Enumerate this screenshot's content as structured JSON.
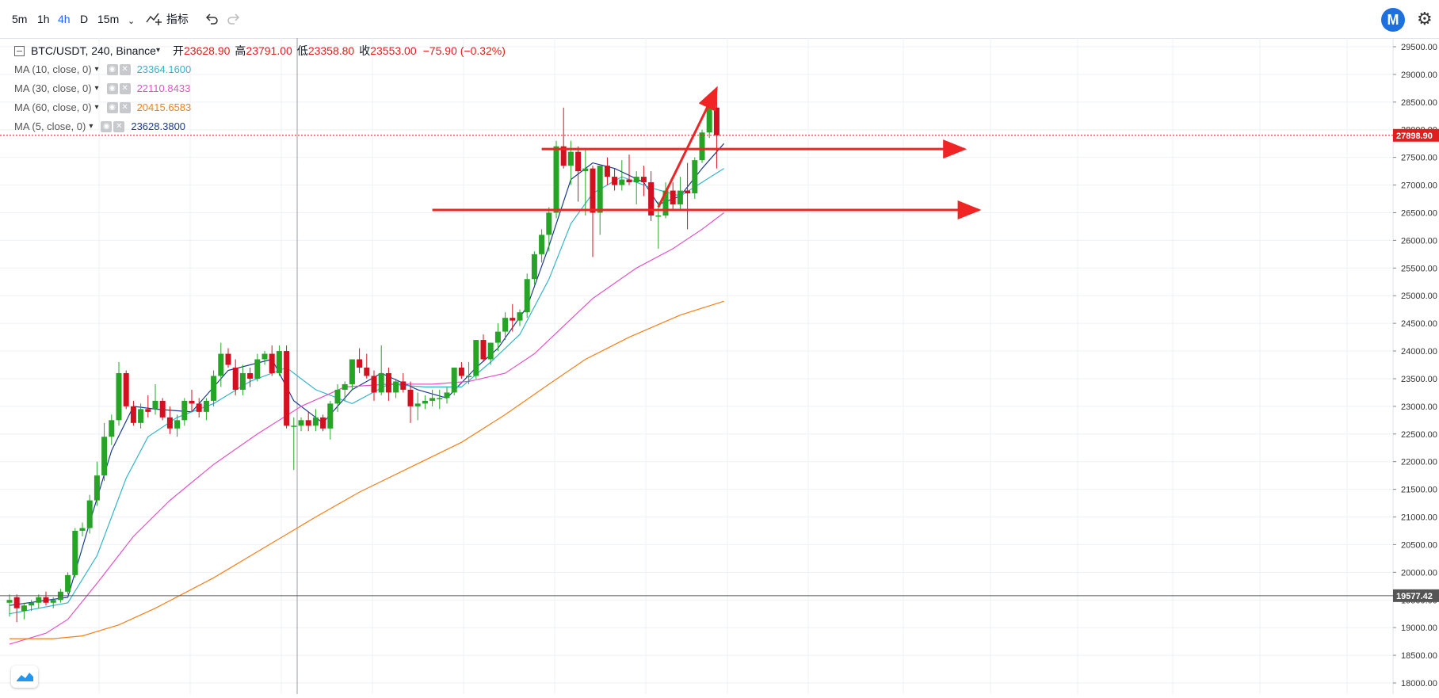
{
  "toolbar": {
    "intervals": [
      "5m",
      "1h",
      "4h",
      "D",
      "15m"
    ],
    "active_interval": "4h",
    "dropdown_icon": "chevron-down-icon",
    "indicators_label": "指标",
    "undo_icon": "undo-icon",
    "redo_icon": "redo-icon",
    "logo_icon": "m-logo-icon",
    "logo_letter": "M",
    "settings_icon": "gear-icon"
  },
  "legend": {
    "symbol": "BTC/USDT, 240, Binance",
    "open_label": "开",
    "open": "23628.90",
    "high_label": "高",
    "high": "23791.00",
    "low_label": "低",
    "low": "23358.80",
    "close_label": "收",
    "close": "23553.00",
    "change": "−75.90 (−0.32%)",
    "ma": [
      {
        "label": "MA (10, close, 0)",
        "value": "23364.1600",
        "color": "#31b5c9"
      },
      {
        "label": "MA (30, close, 0)",
        "value": "22110.8433",
        "color": "#e651c8"
      },
      {
        "label": "MA (60, close, 0)",
        "value": "20415.6583",
        "color": "#f57f17"
      },
      {
        "label": "MA (5, close, 0)",
        "value": "23628.3800",
        "color": "#1a3a8f"
      }
    ]
  },
  "chart_data": {
    "type": "candlestick",
    "y_range": [
      17900,
      30000
    ],
    "y_ticks": [
      "29500.00",
      "29000.00",
      "28500.00",
      "28000.00",
      "27500.00",
      "27000.00",
      "26500.00",
      "26000.00",
      "25500.00",
      "25000.00",
      "24500.00",
      "24000.00",
      "23500.00",
      "23000.00",
      "22500.00",
      "22000.00",
      "21500.00",
      "21000.00",
      "20500.00",
      "20000.00",
      "19500.00",
      "19000.00",
      "18500.00",
      "18000.00"
    ],
    "price_tags": [
      {
        "value": 27898.9,
        "label": "27898.90",
        "color": "#e01e1e"
      },
      {
        "value": 19577.42,
        "label": "19577.42",
        "color": "#555555"
      }
    ],
    "candles": [
      [
        19450,
        19600,
        19200,
        19500
      ],
      [
        19550,
        19600,
        19100,
        19350
      ],
      [
        19300,
        19450,
        19150,
        19400
      ],
      [
        19400,
        19500,
        19300,
        19450
      ],
      [
        19450,
        19600,
        19350,
        19550
      ],
      [
        19550,
        19650,
        19400,
        19450
      ],
      [
        19450,
        19550,
        19350,
        19500
      ],
      [
        19500,
        19700,
        19450,
        19650
      ],
      [
        19650,
        20000,
        19600,
        19950
      ],
      [
        19950,
        20800,
        19900,
        20750
      ],
      [
        20750,
        20900,
        20650,
        20800
      ],
      [
        20800,
        21400,
        20700,
        21300
      ],
      [
        21300,
        22000,
        21200,
        21750
      ],
      [
        21750,
        22700,
        21650,
        22450
      ],
      [
        22450,
        22850,
        22300,
        22750
      ],
      [
        22750,
        23800,
        22650,
        23600
      ],
      [
        23600,
        23650,
        22950,
        23000
      ],
      [
        23000,
        23100,
        22650,
        22700
      ],
      [
        22700,
        23050,
        22600,
        22950
      ],
      [
        22950,
        23200,
        22800,
        22900
      ],
      [
        22950,
        23400,
        22850,
        23100
      ],
      [
        23100,
        23150,
        22750,
        22800
      ],
      [
        22800,
        23000,
        22500,
        22600
      ],
      [
        22600,
        22850,
        22450,
        22750
      ],
      [
        22750,
        23150,
        22650,
        23100
      ],
      [
        23100,
        23300,
        22900,
        23050
      ],
      [
        23050,
        23150,
        22800,
        22900
      ],
      [
        22900,
        23150,
        22750,
        23100
      ],
      [
        23100,
        23650,
        23000,
        23550
      ],
      [
        23550,
        24150,
        23350,
        23950
      ],
      [
        23950,
        24050,
        23700,
        23750
      ],
      [
        23700,
        23850,
        23200,
        23300
      ],
      [
        23300,
        23750,
        23200,
        23600
      ],
      [
        23600,
        23700,
        23350,
        23500
      ],
      [
        23500,
        23950,
        23450,
        23850
      ],
      [
        23850,
        24000,
        23750,
        23950
      ],
      [
        23950,
        24100,
        23550,
        23600
      ],
      [
        23600,
        24100,
        23550,
        24000
      ],
      [
        24000,
        24100,
        22600,
        22650
      ],
      [
        22650,
        22800,
        21850,
        22650
      ],
      [
        22650,
        22800,
        22550,
        22750
      ],
      [
        22750,
        22900,
        22550,
        22650
      ],
      [
        22650,
        22950,
        22550,
        22800
      ],
      [
        22800,
        22850,
        22550,
        22600
      ],
      [
        22600,
        23100,
        22400,
        23050
      ],
      [
        23050,
        23400,
        22900,
        23300
      ],
      [
        23300,
        23450,
        23100,
        23400
      ],
      [
        23400,
        23850,
        23300,
        23850
      ],
      [
        23850,
        24050,
        23600,
        23700
      ],
      [
        23700,
        23950,
        23500,
        23550
      ],
      [
        23550,
        23650,
        23100,
        23250
      ],
      [
        23250,
        24100,
        23200,
        23600
      ],
      [
        23600,
        23700,
        23100,
        23250
      ],
      [
        23250,
        23500,
        23150,
        23450
      ],
      [
        23450,
        23600,
        23250,
        23300
      ],
      [
        23300,
        23450,
        22700,
        23000
      ],
      [
        23000,
        23250,
        22750,
        23050
      ],
      [
        23050,
        23200,
        22950,
        23100
      ],
      [
        23100,
        23300,
        23000,
        23150
      ],
      [
        23150,
        23300,
        22950,
        23150
      ],
      [
        23150,
        23350,
        23050,
        23250
      ],
      [
        23250,
        23650,
        23200,
        23700
      ],
      [
        23700,
        23800,
        23500,
        23550
      ],
      [
        23550,
        23800,
        23400,
        23550
      ],
      [
        23550,
        24200,
        23500,
        24200
      ],
      [
        24200,
        24300,
        23800,
        23850
      ],
      [
        23850,
        24150,
        23750,
        24150
      ],
      [
        24150,
        24500,
        24000,
        24350
      ],
      [
        24350,
        24700,
        24200,
        24600
      ],
      [
        24600,
        24850,
        24350,
        24550
      ],
      [
        24550,
        24750,
        24450,
        24700
      ],
      [
        24700,
        25400,
        24600,
        25300
      ],
      [
        25300,
        25800,
        25200,
        25750
      ],
      [
        25750,
        26200,
        25600,
        26100
      ],
      [
        26100,
        26600,
        25800,
        26500
      ],
      [
        26500,
        27800,
        26400,
        27700
      ],
      [
        27700,
        28400,
        27300,
        27350
      ],
      [
        27350,
        27800,
        27000,
        27600
      ],
      [
        27600,
        27700,
        26700,
        27250
      ],
      [
        27250,
        27650,
        26450,
        27300
      ],
      [
        27300,
        27350,
        25700,
        26500
      ],
      [
        26500,
        27350,
        26100,
        27350
      ],
      [
        27350,
        27500,
        27000,
        27150
      ],
      [
        27150,
        27300,
        26900,
        27000
      ],
      [
        27000,
        27450,
        26900,
        27100
      ],
      [
        27100,
        27550,
        27000,
        27050
      ],
      [
        27050,
        27250,
        26650,
        27150
      ],
      [
        27150,
        27350,
        26800,
        27050
      ],
      [
        27050,
        27250,
        26350,
        26450
      ],
      [
        26450,
        26700,
        25850,
        26450
      ],
      [
        26450,
        27050,
        26400,
        26900
      ],
      [
        26900,
        27050,
        26550,
        26650
      ],
      [
        26650,
        27150,
        26550,
        26900
      ],
      [
        26900,
        27400,
        26200,
        26850
      ],
      [
        26850,
        27500,
        26750,
        27450
      ],
      [
        27450,
        28000,
        27400,
        27950
      ],
      [
        27950,
        28550,
        27850,
        28400
      ],
      [
        28400,
        28650,
        27300,
        27900
      ]
    ],
    "ma_series": [
      {
        "name": "MA (5, close, 0)",
        "color": "#1a3a8f",
        "points": [
          [
            0,
            19400
          ],
          [
            8,
            19550
          ],
          [
            11,
            20900
          ],
          [
            14,
            22200
          ],
          [
            17,
            23000
          ],
          [
            20,
            22950
          ],
          [
            25,
            22900
          ],
          [
            30,
            23650
          ],
          [
            36,
            23850
          ],
          [
            39,
            23100
          ],
          [
            43,
            22700
          ],
          [
            47,
            23300
          ],
          [
            51,
            23600
          ],
          [
            56,
            23300
          ],
          [
            60,
            23150
          ],
          [
            64,
            23700
          ],
          [
            67,
            24050
          ],
          [
            71,
            24800
          ],
          [
            74,
            25900
          ],
          [
            77,
            27100
          ],
          [
            80,
            27400
          ],
          [
            83,
            27300
          ],
          [
            87,
            27050
          ],
          [
            89,
            26650
          ],
          [
            92,
            26800
          ],
          [
            95,
            27300
          ],
          [
            98,
            27750
          ]
        ]
      },
      {
        "name": "MA (10, close, 0)",
        "color": "#31b5c9",
        "points": [
          [
            0,
            19250
          ],
          [
            8,
            19450
          ],
          [
            12,
            20300
          ],
          [
            16,
            21700
          ],
          [
            19,
            22450
          ],
          [
            23,
            22800
          ],
          [
            28,
            23050
          ],
          [
            33,
            23450
          ],
          [
            38,
            23700
          ],
          [
            42,
            23300
          ],
          [
            47,
            23050
          ],
          [
            52,
            23400
          ],
          [
            57,
            23350
          ],
          [
            62,
            23350
          ],
          [
            66,
            23800
          ],
          [
            70,
            24300
          ],
          [
            74,
            25300
          ],
          [
            77,
            26300
          ],
          [
            80,
            26850
          ],
          [
            84,
            27150
          ],
          [
            88,
            26950
          ],
          [
            92,
            26800
          ],
          [
            95,
            27050
          ],
          [
            98,
            27300
          ]
        ]
      },
      {
        "name": "MA (30, close, 0)",
        "color": "#e651c8",
        "points": [
          [
            0,
            18700
          ],
          [
            5,
            18900
          ],
          [
            8,
            19150
          ],
          [
            12,
            19800
          ],
          [
            17,
            20650
          ],
          [
            22,
            21300
          ],
          [
            28,
            21950
          ],
          [
            34,
            22500
          ],
          [
            40,
            23000
          ],
          [
            46,
            23350
          ],
          [
            52,
            23400
          ],
          [
            58,
            23400
          ],
          [
            63,
            23450
          ],
          [
            68,
            23600
          ],
          [
            72,
            23950
          ],
          [
            76,
            24450
          ],
          [
            80,
            24950
          ],
          [
            86,
            25500
          ],
          [
            91,
            25850
          ],
          [
            95,
            26200
          ],
          [
            98,
            26500
          ]
        ]
      },
      {
        "name": "MA (60, close, 0)",
        "color": "#f57f17",
        "points": [
          [
            0,
            18800
          ],
          [
            6,
            18800
          ],
          [
            10,
            18850
          ],
          [
            15,
            19050
          ],
          [
            20,
            19350
          ],
          [
            28,
            19900
          ],
          [
            35,
            20450
          ],
          [
            42,
            21000
          ],
          [
            48,
            21450
          ],
          [
            55,
            21900
          ],
          [
            62,
            22350
          ],
          [
            68,
            22850
          ],
          [
            74,
            23400
          ],
          [
            79,
            23850
          ],
          [
            85,
            24250
          ],
          [
            92,
            24650
          ],
          [
            98,
            24900
          ]
        ]
      }
    ]
  },
  "drawings": {
    "color": "#f02424",
    "items": [
      {
        "kind": "horizontal-arrow",
        "from": [
          73,
          27650
        ],
        "to": [
          131,
          27650
        ]
      },
      {
        "kind": "horizontal-arrow",
        "from": [
          58,
          26550
        ],
        "to": [
          133,
          26550
        ]
      },
      {
        "kind": "trend-arrow",
        "from": [
          89,
          26600
        ],
        "to": [
          97,
          28750
        ]
      }
    ]
  },
  "bottom_logo_icon": "tradingview-logo-icon"
}
